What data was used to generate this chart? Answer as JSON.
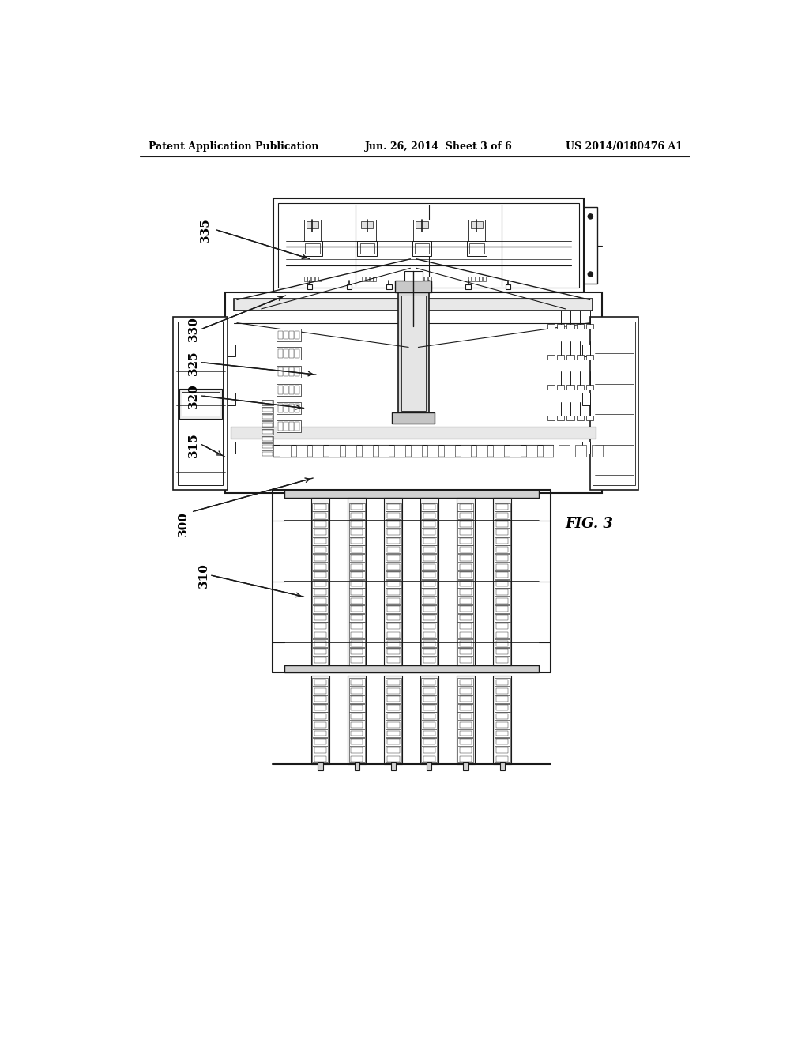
{
  "bg_color": "#ffffff",
  "line_color": "#1a1a1a",
  "header_left": "Patent Application Publication",
  "header_mid": "Jun. 26, 2014  Sheet 3 of 6",
  "header_right": "US 2014/0180476 A1",
  "fig_label": "FIG. 3",
  "label_fontsize": 11,
  "header_fontsize": 9
}
